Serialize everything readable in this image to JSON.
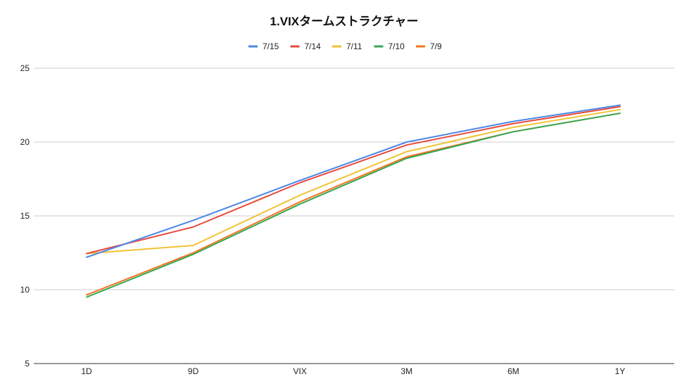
{
  "chart_data": {
    "type": "line",
    "title": "1.VIXタームストラクチャー",
    "xlabel": "",
    "ylabel": "",
    "categories": [
      "1D",
      "9D",
      "VIX",
      "3M",
      "6M",
      "1Y"
    ],
    "ylim": [
      5,
      25
    ],
    "yticks": [
      5,
      10,
      15,
      20,
      25
    ],
    "grid": true,
    "legend": "top-center",
    "series": [
      {
        "name": "7/15",
        "color": "#4a86e8",
        "values": [
          12.2,
          14.7,
          17.4,
          20.0,
          21.4,
          22.5
        ]
      },
      {
        "name": "7/14",
        "color": "#e8493d",
        "values": [
          12.45,
          14.25,
          17.25,
          19.8,
          21.25,
          22.4
        ]
      },
      {
        "name": "7/11",
        "color": "#f1c232",
        "values": [
          12.45,
          13.0,
          16.4,
          19.35,
          21.0,
          22.2
        ]
      },
      {
        "name": "7/10",
        "color": "#34a853",
        "values": [
          9.5,
          12.4,
          15.8,
          18.9,
          20.7,
          21.95
        ]
      },
      {
        "name": "7/9",
        "color": "#f4731f",
        "values": [
          9.65,
          12.5,
          15.95,
          19.0,
          20.7,
          21.95
        ]
      }
    ]
  }
}
